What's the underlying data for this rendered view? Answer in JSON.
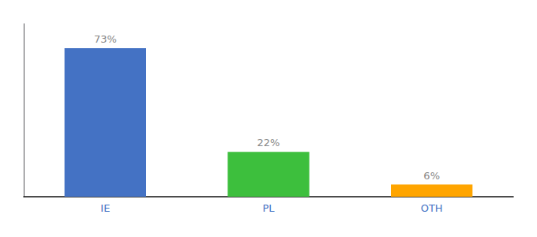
{
  "chart_data": {
    "type": "bar",
    "categories": [
      "IE",
      "PL",
      "OTH"
    ],
    "values": [
      73,
      22,
      6
    ],
    "value_labels": [
      "73%",
      "22%",
      "6%"
    ],
    "colors": [
      "#4472C4",
      "#3DBF3D",
      "#FFA500"
    ],
    "ylim": [
      0,
      85
    ],
    "grid": false,
    "data_labels": true,
    "tick_labels": "x"
  }
}
